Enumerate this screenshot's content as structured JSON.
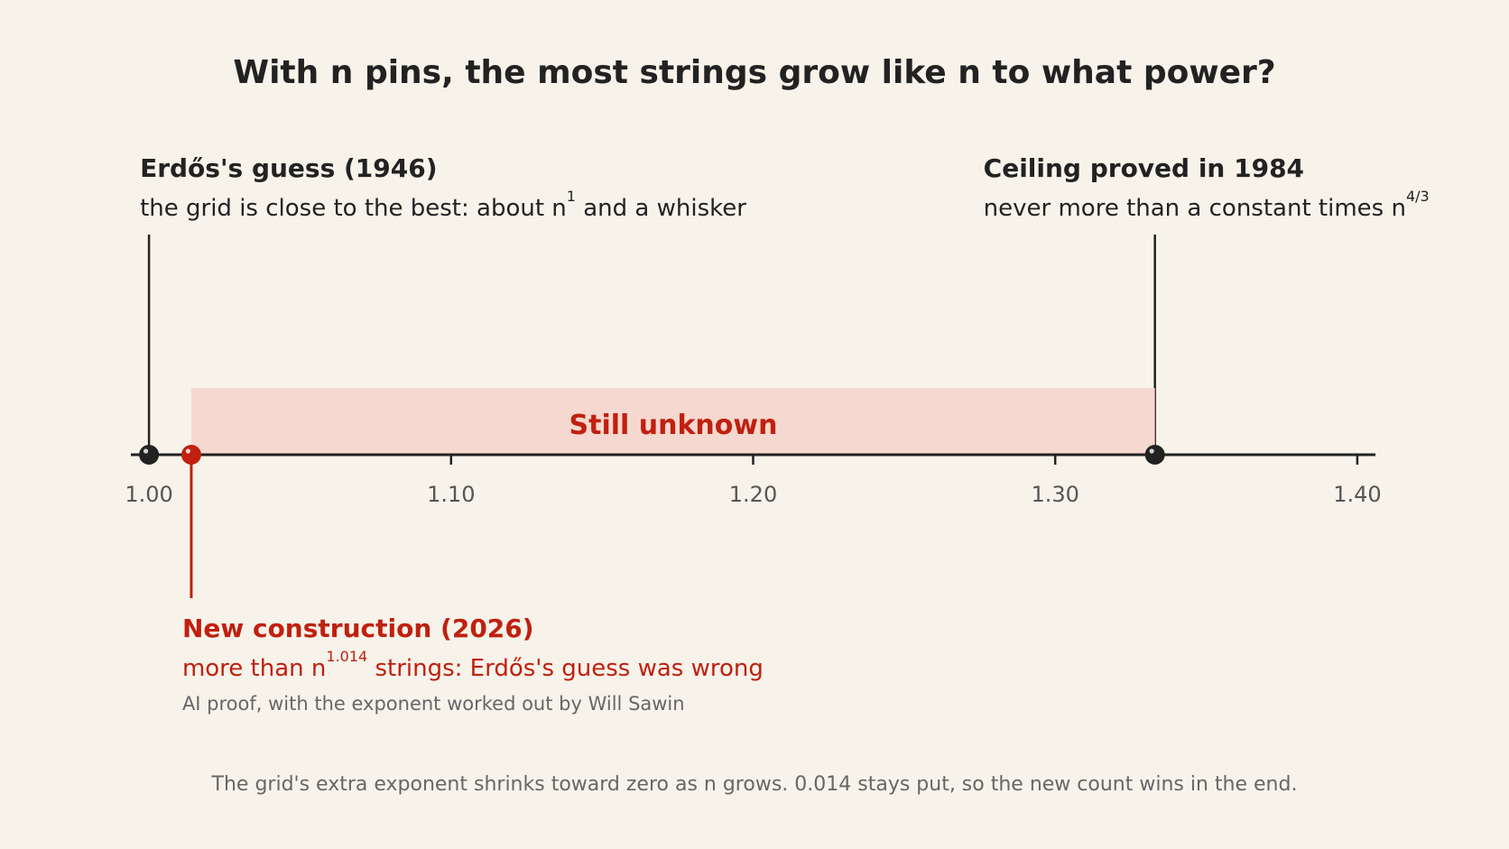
{
  "chart_data": {
    "type": "numberline",
    "title": "With n pins, the most strings grow like n to what power?",
    "xlim": [
      0.994,
      1.406
    ],
    "xticks": [
      {
        "value": 1,
        "label": "1.00"
      },
      {
        "value": 1.1,
        "label": "1.10"
      },
      {
        "value": 1.2,
        "label": "1.20"
      },
      {
        "value": 1.3,
        "label": "1.30"
      },
      {
        "value": 1.4,
        "label": "1.40"
      }
    ],
    "band": {
      "from": 1.014,
      "to": 1.333,
      "label": "Still unknown",
      "color": "#f5d8cf",
      "label_color": "#c0200f"
    },
    "markers": [
      {
        "x": 1,
        "color": "#222222",
        "side": "above",
        "title": "Erdős's guess (1946)",
        "text": "the grid is close to the best: about n",
        "sup": "1",
        "text_after": " and a whisker"
      },
      {
        "x": 1.333,
        "color": "#222222",
        "side": "above",
        "title": "Ceiling proved in 1984",
        "text": "never more than a constant times n",
        "sup": "4/3"
      },
      {
        "x": 1.014,
        "color": "#c0200f",
        "side": "below",
        "title": "New construction (2026)",
        "text": "more than n",
        "sup": "1.014",
        "text_after": " strings: Erdős's guess was wrong",
        "note": "AI proof, with the exponent worked out by Will Sawin"
      }
    ],
    "footnote": "The grid's extra exponent shrinks toward zero as n grows. 0.014 stays put, so the new count wins in the end."
  }
}
